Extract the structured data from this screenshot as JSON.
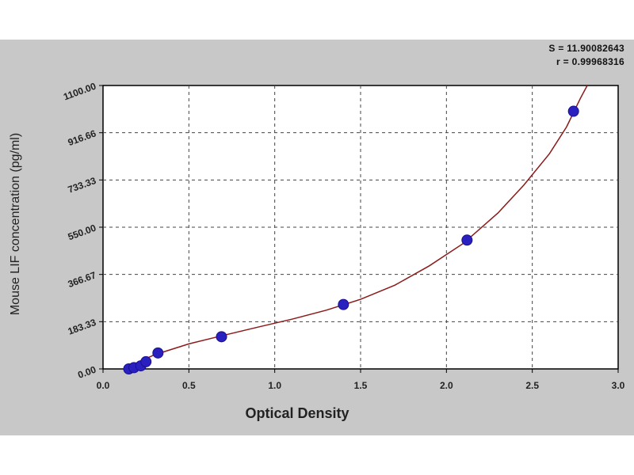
{
  "stats": {
    "s_line": "S = 11.90082643",
    "r_line": "r = 0.99968316"
  },
  "chart_data": {
    "type": "scatter",
    "title": "",
    "xlabel": "Optical Density",
    "ylabel": "Mouse LIF concentration (pg/ml)",
    "xlim": [
      0.0,
      3.0
    ],
    "ylim": [
      0.0,
      1100.0
    ],
    "x_ticks": [
      "0.0",
      "0.5",
      "1.0",
      "1.5",
      "2.0",
      "2.5",
      "3.0"
    ],
    "y_ticks": [
      "0.00",
      "183.33",
      "366.67",
      "550.00",
      "733.33",
      "916.66",
      "1100.00"
    ],
    "grid": true,
    "points": {
      "color": "#2a1fbf",
      "x": [
        0.15,
        0.18,
        0.22,
        0.25,
        0.32,
        0.69,
        1.4,
        2.12,
        2.74
      ],
      "y": [
        0,
        5,
        12,
        28,
        62,
        125,
        250,
        500,
        1000
      ]
    },
    "fit_curve": {
      "color": "#8b1a1a",
      "x": [
        0.12,
        0.3,
        0.5,
        0.7,
        0.9,
        1.1,
        1.3,
        1.5,
        1.7,
        1.9,
        2.1,
        2.3,
        2.45,
        2.6,
        2.7,
        2.78,
        2.82
      ],
      "y": [
        0,
        55,
        97,
        130,
        162,
        193,
        228,
        270,
        325,
        400,
        488,
        605,
        713,
        835,
        940,
        1050,
        1100
      ]
    }
  }
}
